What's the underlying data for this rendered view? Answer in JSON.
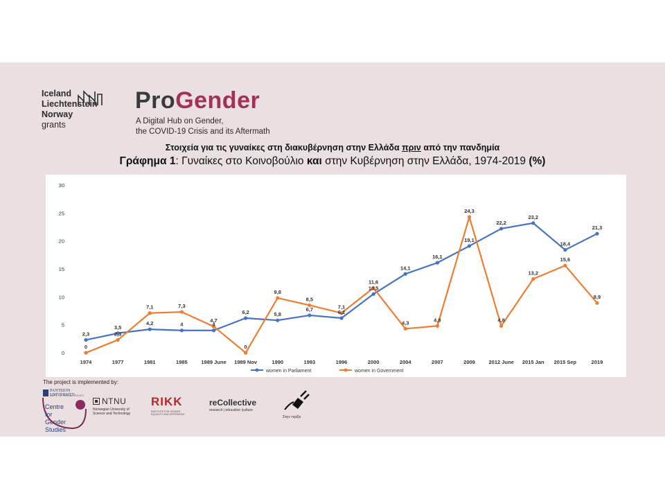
{
  "header": {
    "funder_lines": [
      "Iceland",
      "Liechtenstein",
      "Norway"
    ],
    "funder_grants": "grants",
    "brand_pro": "Pro",
    "brand_gender": "Gender",
    "subtitle_line1": "A Digital Hub on Gender,",
    "subtitle_line2": "the COVID-19 Crisis and its Aftermath"
  },
  "heading": {
    "line1_a": "Στοιχεία για τις γυναίκες στη διακυβέρνηση στην Ελλάδα ",
    "line1_u": "πριν",
    "line1_b": " από την πανδημία",
    "line2_bold1": "Γράφημα 1",
    "line2_n1": ": Γυναίκες στο ",
    "line2_n2": "Κοινοβούλιο",
    "line2_bold2": " και ",
    "line2_n3": "στην Κυβέρνηση στην Ελλάδα",
    "line2_n4": ", 1974-2019 ",
    "line2_bold3": "(%)"
  },
  "colors": {
    "parliament": "#4472c4",
    "government": "#ed7d31",
    "band": "#eadfe1",
    "brand_accent": "#a3305a"
  },
  "chart_data": {
    "type": "line",
    "categories": [
      "1974",
      "1977",
      "1981",
      "1985",
      "1989 June",
      "1989 Nov",
      "1990",
      "1993",
      "1996",
      "2000",
      "2004",
      "2007",
      "2009",
      "2012 June",
      "2015 Jan",
      "2015 Sep",
      "2019"
    ],
    "ylim": [
      0,
      30
    ],
    "yticks": [
      0,
      5,
      10,
      15,
      20,
      25,
      30
    ],
    "grid": false,
    "legend": "bottom",
    "series": [
      {
        "name": "women in Parliament",
        "color": "#4472c4",
        "values": [
          2.3,
          3.5,
          4.2,
          4,
          4,
          6.2,
          5.8,
          6.7,
          6.2,
          10.5,
          14.1,
          16.1,
          19.1,
          22.2,
          23.2,
          18.4,
          21.3
        ],
        "labels": [
          "2,3",
          "3,5",
          "4,2",
          "4",
          "4",
          "6,2",
          "5,8",
          "6,7",
          "6,2",
          "10,5",
          "14,1",
          "16,1",
          "19,1",
          "22,2",
          "23,2",
          "18,4",
          "21,3"
        ]
      },
      {
        "name": "women in Government",
        "color": "#ed7d31",
        "values": [
          0,
          2.3,
          7.1,
          7.3,
          4.7,
          0,
          9.8,
          8.5,
          7.1,
          11.6,
          4.3,
          4.8,
          24.3,
          4.8,
          13.2,
          15.6,
          8.9
        ],
        "labels": [
          "0",
          "2,3",
          "7,1",
          "7,3",
          "4,7",
          "0",
          "9,8",
          "8,5",
          "7,1",
          "11,6",
          "4,3",
          "4,8",
          "24,3",
          "4,8",
          "13,2",
          "15,6",
          "8,9"
        ]
      }
    ]
  },
  "footer": {
    "implemented_label": "The project is implemented by:",
    "panteion_text": "PANTEION UNIVERSITY",
    "panteion_sub": "DEPT. OF SOCIAL POLICY",
    "centre_text": "Centre for Gender Studies",
    "ntnu_text": "NTNU",
    "ntnu_sub1": "Norwegian University of",
    "ntnu_sub2": "Science and Technology",
    "rikk_text": "RIKK",
    "rikk_sub1": "INSTITUTE FOR GENDER,",
    "rikk_sub2": "EQUALITY AND DIFFERENCE",
    "recollective_text": "reCollective",
    "recollective_sub": "research | education |culture",
    "stinpriza_text": "Στην πρίζα"
  }
}
